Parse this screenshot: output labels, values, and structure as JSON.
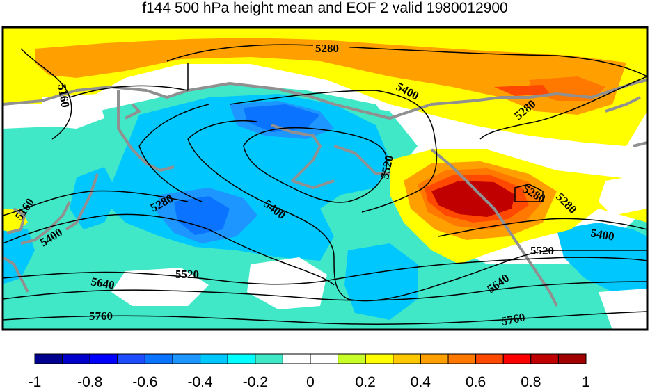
{
  "title": "f144 500 hPa height mean and EOF 2 valid 1980012900",
  "contour_labels": [
    "5280",
    "5400",
    "5160",
    "5520",
    "5280",
    "5160",
    "5280",
    "5400",
    "5280",
    "5280",
    "5400",
    "5400",
    "5520",
    "5520",
    "5640",
    "5640",
    "5760",
    "5760"
  ],
  "colorbar": {
    "tick_labels": [
      "-1",
      "-0.8",
      "-0.6",
      "-0.4",
      "-0.2",
      "0",
      "0.2",
      "0.4",
      "0.6",
      "0.8",
      "1"
    ],
    "colors": [
      "#00008f",
      "#0000cd",
      "#0000ff",
      "#1e4cff",
      "#0a73ff",
      "#1e96ff",
      "#00c8ff",
      "#00ffff",
      "#40e8c8",
      "#ffffff",
      "#ffffff",
      "#c8ff28",
      "#ffff00",
      "#ffc800",
      "#ffa000",
      "#ff7800",
      "#ff4800",
      "#ff0000",
      "#c00000",
      "#a00000"
    ]
  },
  "legend_colors": {
    "land_outline": "#909090",
    "contour": "#000000"
  }
}
